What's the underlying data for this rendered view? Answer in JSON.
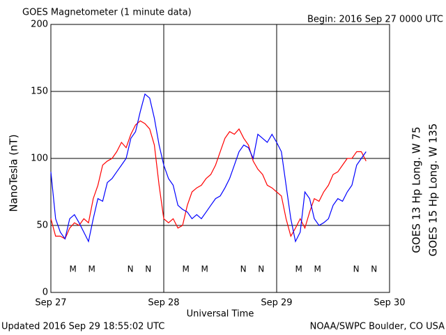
{
  "chart_data": {
    "type": "line",
    "title": "GOES Magnetometer (1 minute data)",
    "subtitle": "Begin:  2016 Sep 27 0000 UTC",
    "ylabel": "NanoTesla (nT)",
    "xlabel": "Universal Time",
    "footer_left": "Updated 2016 Sep 29 18:55:02 UTC",
    "footer_right": "NOAA/SWPC Boulder, CO USA",
    "xlim": [
      0,
      72
    ],
    "xticks": [
      {
        "value": 0,
        "label": "Sep 27"
      },
      {
        "value": 24,
        "label": "Sep 28"
      },
      {
        "value": 48,
        "label": "Sep 29"
      },
      {
        "value": 72,
        "label": "Sep 30"
      }
    ],
    "ylim": [
      0,
      200
    ],
    "yticks": [
      0,
      50,
      100,
      150,
      200
    ],
    "grid": true,
    "x": [
      0,
      1,
      2,
      3,
      4,
      5,
      6,
      7,
      8,
      9,
      10,
      11,
      12,
      13,
      14,
      15,
      16,
      17,
      18,
      19,
      20,
      21,
      22,
      23,
      24,
      25,
      26,
      27,
      28,
      29,
      30,
      31,
      32,
      33,
      34,
      35,
      36,
      37,
      38,
      39,
      40,
      41,
      42,
      43,
      44,
      45,
      46,
      47,
      48,
      49,
      50,
      51,
      52,
      53,
      54,
      55,
      56,
      57,
      58,
      59,
      60,
      61,
      62,
      63,
      64,
      65,
      66,
      67
    ],
    "series": [
      {
        "name": "GOES 13 Hp  Long. W 75",
        "color": "#ff0000",
        "values": [
          55,
          42,
          42,
          40,
          48,
          52,
          50,
          55,
          52,
          70,
          80,
          95,
          98,
          100,
          105,
          112,
          108,
          118,
          125,
          128,
          126,
          122,
          110,
          80,
          55,
          52,
          55,
          48,
          50,
          65,
          75,
          78,
          80,
          85,
          88,
          95,
          105,
          115,
          120,
          118,
          122,
          115,
          110,
          98,
          92,
          88,
          80,
          78,
          75,
          72,
          55,
          42,
          48,
          55,
          48,
          60,
          70,
          68,
          75,
          80,
          88,
          90,
          95,
          100,
          100,
          105,
          105,
          98
        ]
      },
      {
        "name": "GOES 15 Hp  Long. W 135",
        "color": "#0000ff",
        "values": [
          90,
          55,
          45,
          40,
          55,
          58,
          52,
          45,
          38,
          55,
          70,
          68,
          82,
          85,
          90,
          95,
          100,
          115,
          120,
          135,
          148,
          145,
          130,
          110,
          95,
          85,
          80,
          65,
          62,
          60,
          55,
          58,
          55,
          60,
          65,
          70,
          72,
          78,
          85,
          95,
          105,
          110,
          108,
          100,
          118,
          115,
          112,
          118,
          112,
          105,
          80,
          55,
          38,
          45,
          75,
          70,
          55,
          50,
          52,
          55,
          65,
          70,
          68,
          75,
          80,
          95,
          100,
          105
        ]
      }
    ],
    "markers": [
      {
        "text": "M",
        "x": 4.7,
        "series": 0
      },
      {
        "text": "M",
        "x": 8.7,
        "series": 1
      },
      {
        "text": "N",
        "x": 16.9,
        "series": 0
      },
      {
        "text": "N",
        "x": 20.7,
        "series": 1
      },
      {
        "text": "M",
        "x": 28.7,
        "series": 0
      },
      {
        "text": "M",
        "x": 32.7,
        "series": 1
      },
      {
        "text": "N",
        "x": 40.9,
        "series": 0
      },
      {
        "text": "N",
        "x": 44.7,
        "series": 1
      },
      {
        "text": "M",
        "x": 52.7,
        "series": 0
      },
      {
        "text": "M",
        "x": 56.7,
        "series": 1
      },
      {
        "text": "N",
        "x": 64.9,
        "series": 0
      },
      {
        "text": "N",
        "x": 68.7,
        "series": 1
      }
    ]
  }
}
